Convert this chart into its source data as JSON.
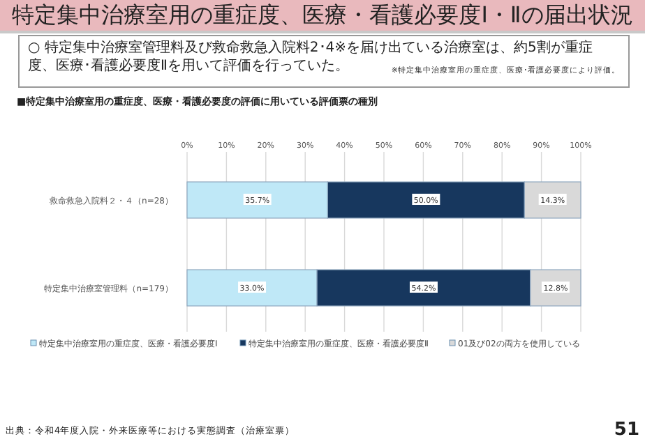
{
  "chart_data": {
    "type": "bar",
    "orientation": "horizontal",
    "stacked": true,
    "title": "特定集中治療室用の重症度、医療・看護必要度Ⅰ・Ⅱの届出状況",
    "subtitle": "■特定集中治療室用の重症度、医療・看護必要度の評価に用いている評価票の種別",
    "annotations": [
      "○ 特定集中治療室管理料及び救命救急入院料2･4※を届け出ている治療室は、約5割が重症度、医療･看護必要度Ⅱを用いて評価を行っていた。",
      "※特定集中治療室用の重症度、医療･看護必要度により評価。",
      "出典：令和4年度入院・外来医療等における実態調査（治療室票）",
      "51"
    ],
    "categories": [
      "救命救急入院料２・４（n=28）",
      "特定集中治療室管理料（n=179）"
    ],
    "series": [
      {
        "name": "特定集中治療室用の重症度、医療・看護必要度Ⅰ",
        "color": "#bfe8f7",
        "values": [
          35.7,
          33.0
        ],
        "value_labels": [
          "35.7%",
          "33.0%"
        ]
      },
      {
        "name": "特定集中治療室用の重症度、医療・看護必要度Ⅱ",
        "color": "#17375e",
        "values": [
          50.0,
          54.2
        ],
        "value_labels": [
          "50.0%",
          "54.2%"
        ]
      },
      {
        "name": "01及び02の両方を使用している",
        "color": "#d9d9d9",
        "values": [
          14.3,
          12.8
        ],
        "value_labels": [
          "14.3%",
          "12.8%"
        ]
      }
    ],
    "xlim": [
      0,
      100
    ],
    "xticks": [
      {
        "value": 0,
        "label": "0%"
      },
      {
        "value": 10,
        "label": "10%"
      },
      {
        "value": 20,
        "label": "20%"
      },
      {
        "value": 30,
        "label": "30%"
      },
      {
        "value": 40,
        "label": "40%"
      },
      {
        "value": 50,
        "label": "50%"
      },
      {
        "value": 60,
        "label": "60%"
      },
      {
        "value": 70,
        "label": "70%"
      },
      {
        "value": 80,
        "label": "80%"
      },
      {
        "value": 90,
        "label": "90%"
      },
      {
        "value": 100,
        "label": "100%"
      }
    ],
    "grid": "x",
    "legend": "bottom"
  }
}
